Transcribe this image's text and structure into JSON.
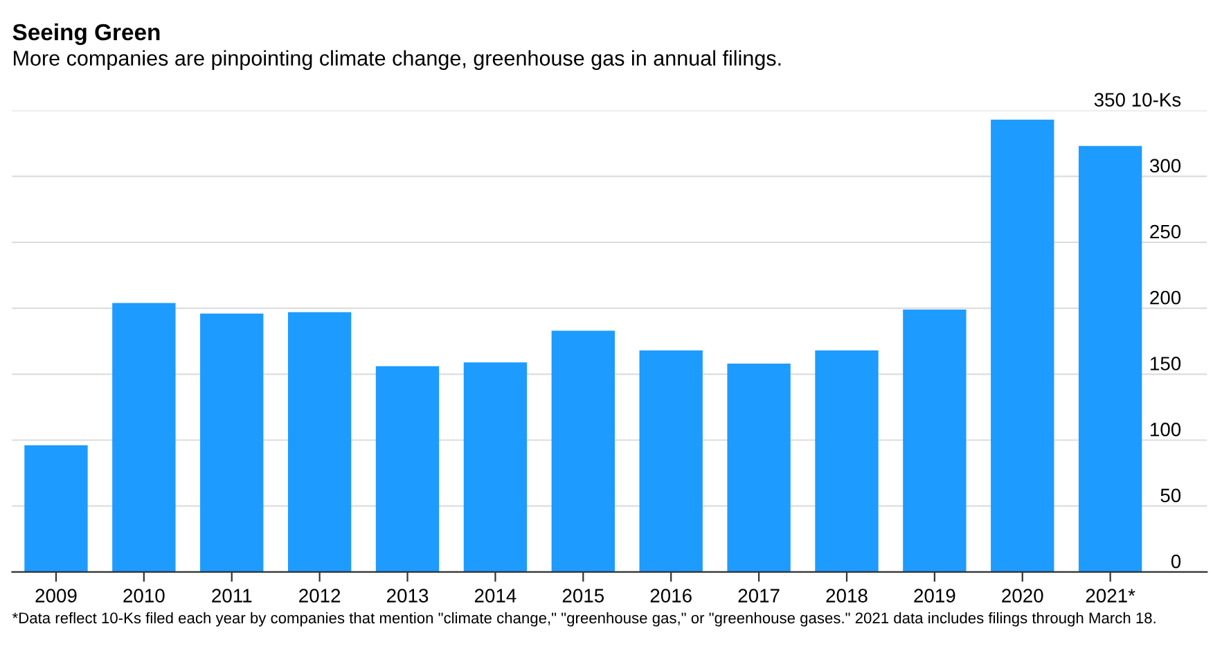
{
  "chart_data": {
    "type": "bar",
    "title": "Seeing Green",
    "subtitle": "More companies are pinpointing climate change, greenhouse gas in annual filings.",
    "categories": [
      "2009",
      "2010",
      "2011",
      "2012",
      "2013",
      "2014",
      "2015",
      "2016",
      "2017",
      "2018",
      "2019",
      "2020",
      "2021*"
    ],
    "values": [
      96,
      204,
      196,
      197,
      156,
      159,
      183,
      168,
      158,
      168,
      199,
      343,
      323
    ],
    "color": "#1e9bff",
    "ylim": [
      0,
      350
    ],
    "yticks": [
      0,
      50,
      100,
      150,
      200,
      250,
      300,
      {
        "value": 350,
        "label": "350 10-Ks"
      }
    ],
    "grid": "y",
    "annotations": [
      "*Data reflect 10-Ks filed each year by companies that mention \"climate change,\" \"greenhouse gas,\" or \"greenhouse gases.\" 2021 data includes filings through March 18."
    ]
  }
}
